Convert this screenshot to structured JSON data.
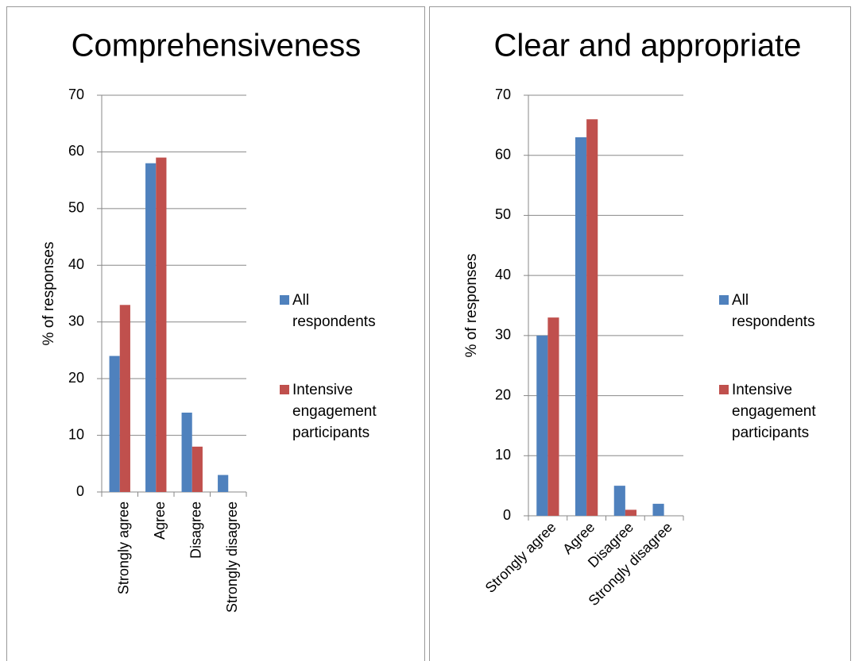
{
  "chart_data": [
    {
      "type": "bar",
      "title": "Comprehensiveness",
      "y_label": "% of responses",
      "categories": [
        "Strongly agree",
        "Agree",
        "Disagree",
        "Strongly disagree"
      ],
      "series": [
        {
          "name": "All respondents",
          "color": "#4f81bd",
          "values": [
            24,
            58,
            14,
            3
          ]
        },
        {
          "name": "Intensive engagement participants",
          "color": "#c0504d",
          "values": [
            33,
            59,
            8,
            0
          ]
        }
      ],
      "ylim": [
        0,
        70
      ],
      "yticks": [
        0,
        10,
        20,
        30,
        40,
        50,
        60,
        70
      ],
      "grid": true,
      "legend": "right"
    },
    {
      "type": "bar",
      "title": "Clear and appropriate",
      "y_label": "% of responses",
      "categories": [
        "Strongly agree",
        "Agree",
        "Disagree",
        "Strongly disagree"
      ],
      "series": [
        {
          "name": "All respondents",
          "color": "#4f81bd",
          "values": [
            30,
            63,
            5,
            2
          ]
        },
        {
          "name": "Intensive engagement participants",
          "color": "#c0504d",
          "values": [
            33,
            66,
            1,
            0
          ]
        }
      ],
      "ylim": [
        0,
        70
      ],
      "yticks": [
        0,
        10,
        20,
        30,
        40,
        50,
        60,
        70
      ],
      "grid": true,
      "legend": "right"
    }
  ]
}
